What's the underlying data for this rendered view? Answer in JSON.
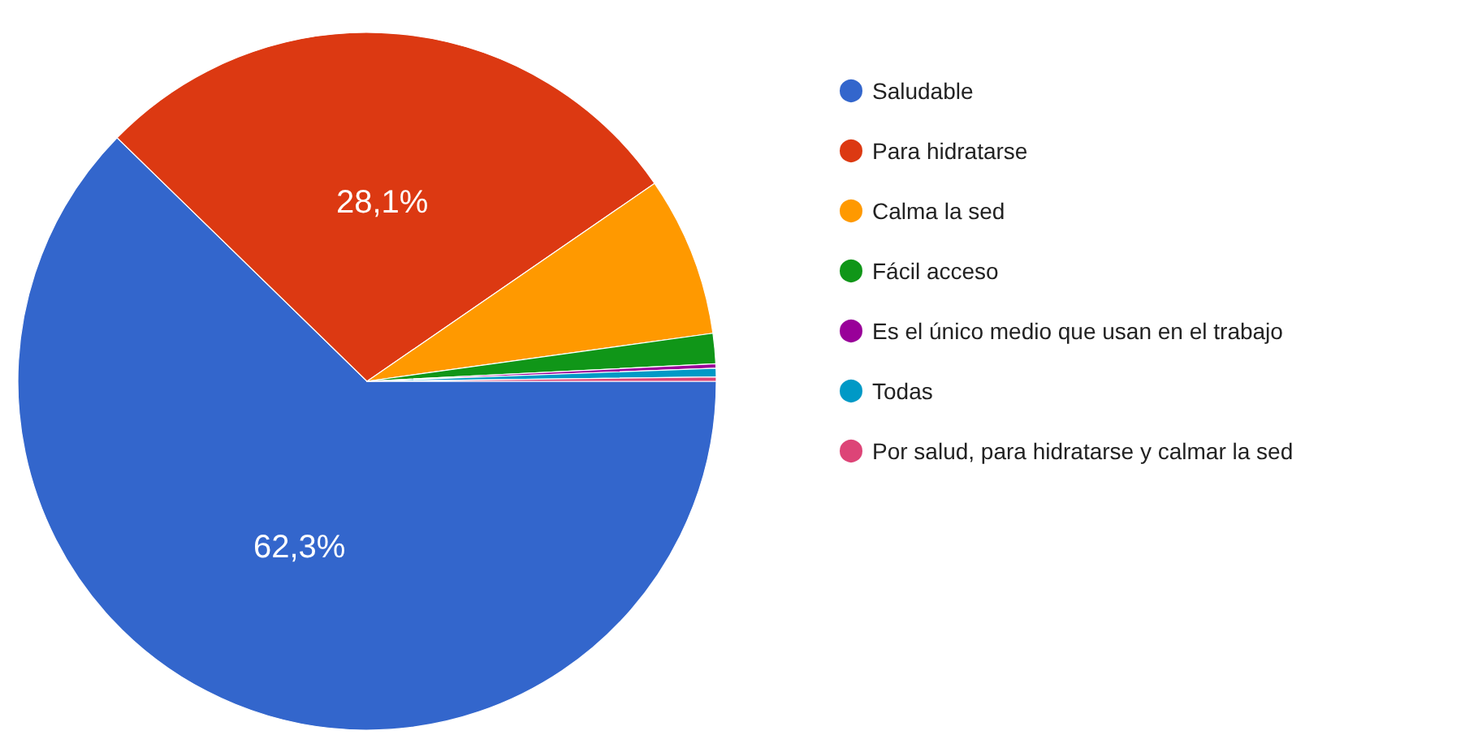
{
  "chart_data": {
    "type": "pie",
    "categories": [
      "Saludable",
      "Para hidratarse",
      "Calma la sed",
      "Fácil acceso",
      "Es el único medio que usan en el trabajo",
      "Todas",
      "Por salud, para hidratarse y calmar la sed"
    ],
    "values": [
      62.3,
      28.1,
      7.4,
      1.4,
      0.2,
      0.4,
      0.2
    ],
    "colors": [
      "#3366cc",
      "#dc3912",
      "#ff9900",
      "#109618",
      "#990099",
      "#0099c6",
      "#dd4477"
    ],
    "value_labels": [
      "62,3%",
      "28,1%",
      null,
      null,
      null,
      null,
      null
    ],
    "legend": "right"
  }
}
